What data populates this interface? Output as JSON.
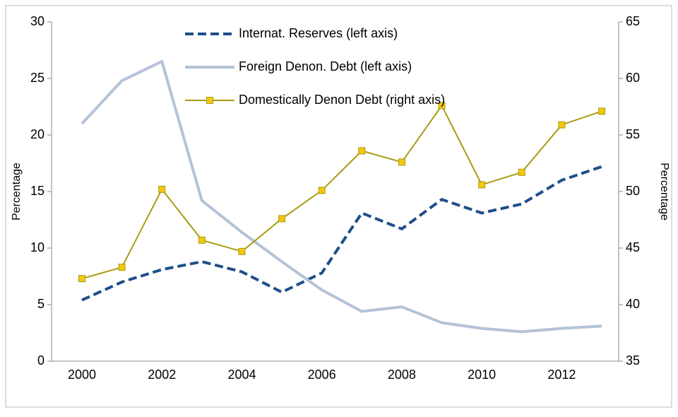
{
  "chart_data": {
    "type": "line",
    "categories": [
      "2000",
      null,
      "2002",
      null,
      "2004",
      null,
      "2006",
      null,
      "2008",
      null,
      "2010",
      null,
      "2012",
      null
    ],
    "y_label": "Percentage",
    "y2_label": "Percentage",
    "ylim": [
      0,
      30
    ],
    "yticks": [
      0,
      5,
      10,
      15,
      20,
      25,
      30
    ],
    "y2lim": [
      35,
      65
    ],
    "y2ticks": [
      35,
      40,
      45,
      50,
      55,
      60,
      65
    ],
    "grid": false,
    "legend": "upper center",
    "series": [
      {
        "name": "Internat. Reserves (left axis)",
        "color": "#1f4e89",
        "style": "dashed",
        "values": [
          5.4,
          7.0,
          8.1,
          8.8,
          7.9,
          6.1,
          7.8,
          13.1,
          11.7,
          14.3,
          13.1,
          13.9,
          16.0,
          17.2
        ]
      },
      {
        "name": "Foreign Denon. Debt (left axis)",
        "color": "#b4c3d6",
        "style": "solid",
        "values": [
          21.0,
          24.8,
          26.5,
          14.2,
          11.4,
          8.8,
          6.3,
          4.4,
          4.8,
          3.4,
          2.9,
          2.6,
          2.9,
          3.1
        ]
      },
      {
        "name": "Domestically Denon Debt (right axis)",
        "color": "#a89c12",
        "marker_color": "#f2c80f",
        "style": "markers",
        "axis": "y2",
        "values": [
          42.3,
          43.3,
          50.2,
          45.7,
          44.7,
          47.6,
          50.1,
          53.6,
          52.6,
          57.6,
          50.6,
          51.7,
          55.9,
          57.1
        ]
      }
    ]
  }
}
